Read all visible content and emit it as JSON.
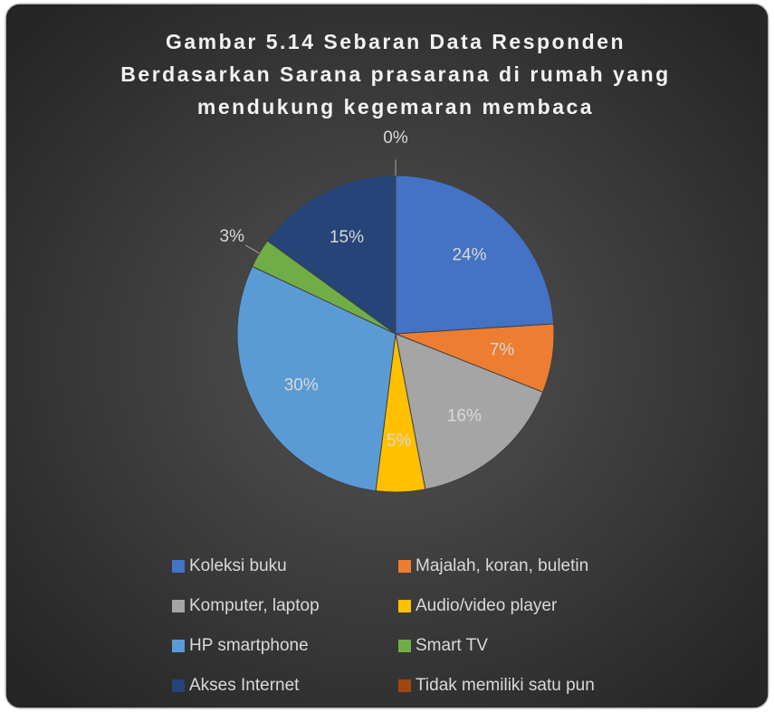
{
  "chart_data": {
    "type": "pie",
    "title": [
      "Gambar 5.14 Sebaran Data Responden",
      "Berdasarkan Sarana prasarana di rumah yang",
      "mendukung kegemaran membaca"
    ],
    "categories": [
      "Koleksi buku",
      "Majalah, koran, buletin",
      "Komputer, laptop",
      "Audio/video player",
      "HP smartphone",
      "Smart TV",
      "Akses Internet",
      "Tidak memiliki satu pun"
    ],
    "values": [
      24,
      7,
      16,
      5,
      30,
      3,
      15,
      0
    ],
    "value_labels": [
      "24%",
      "7%",
      "16%",
      "5%",
      "30%",
      "3%",
      "15%",
      "0%"
    ],
    "colors": [
      "#4472c4",
      "#ed7d31",
      "#a5a5a5",
      "#ffc000",
      "#5b9bd5",
      "#70ad47",
      "#264478",
      "#9e480e"
    ],
    "legend": "bottom"
  }
}
